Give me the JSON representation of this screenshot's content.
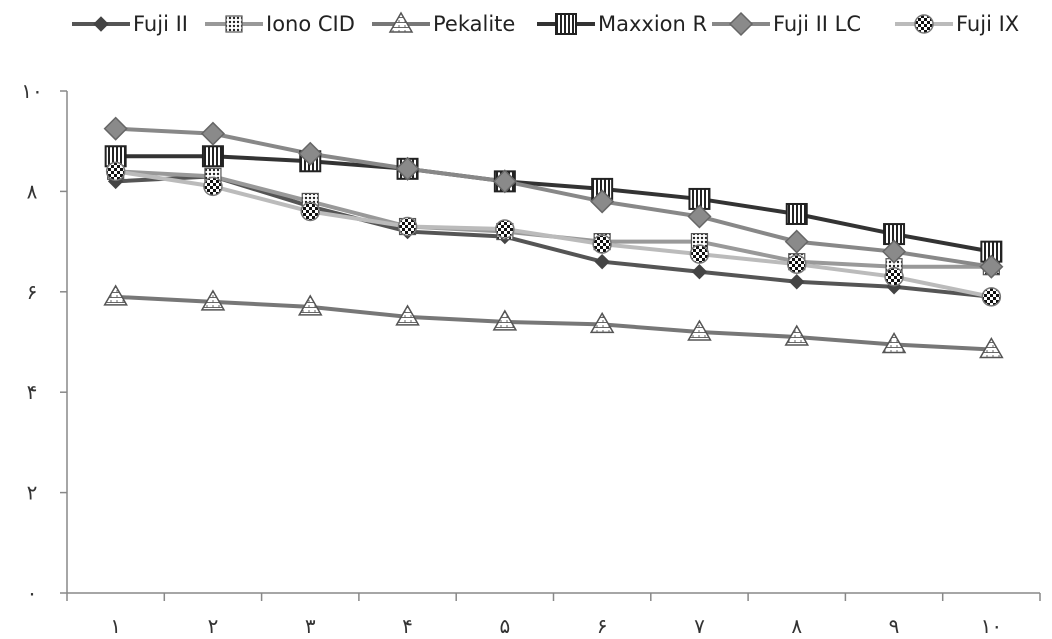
{
  "chart_data": {
    "type": "line",
    "title": "",
    "xlabel": "",
    "ylabel": "",
    "categories": [
      "١",
      "٢",
      "٣",
      "۴",
      "۵",
      "۶",
      "٧",
      "٨",
      "٩",
      "١٠"
    ],
    "y_ticks": [
      "٠",
      "٢",
      "۴",
      "۶",
      "٨",
      "١٠"
    ],
    "ylim": [
      0,
      10
    ],
    "grid": false,
    "legend_position": "top",
    "series": [
      {
        "name": "Fuji II",
        "color": "#555555",
        "marker": "diamond",
        "values": [
          8.2,
          8.3,
          7.7,
          7.2,
          7.1,
          6.6,
          6.4,
          6.2,
          6.1,
          5.9
        ]
      },
      {
        "name": "Iono CID",
        "color": "#999999",
        "marker": "square-dotted",
        "values": [
          8.4,
          8.3,
          7.8,
          7.3,
          7.2,
          7.0,
          7.0,
          6.6,
          6.5,
          6.5
        ]
      },
      {
        "name": "Pekalite",
        "color": "#777777",
        "marker": "triangle",
        "values": [
          5.9,
          5.8,
          5.7,
          5.5,
          5.4,
          5.35,
          5.2,
          5.1,
          4.95,
          4.85
        ]
      },
      {
        "name": "Maxxion R",
        "color": "#333333",
        "marker": "square-striped",
        "values": [
          8.7,
          8.7,
          8.6,
          8.45,
          8.2,
          8.05,
          7.85,
          7.55,
          7.15,
          6.8
        ]
      },
      {
        "name": "Fuji II LC",
        "color": "#888888",
        "marker": "diamond-light",
        "values": [
          9.25,
          9.15,
          8.75,
          8.45,
          8.2,
          7.8,
          7.5,
          7.0,
          6.8,
          6.5
        ]
      },
      {
        "name": "Fuji IX",
        "color": "#bbbbbb",
        "marker": "circle-checker",
        "values": [
          8.4,
          8.1,
          7.6,
          7.3,
          7.25,
          6.95,
          6.75,
          6.55,
          6.3,
          5.9
        ]
      }
    ]
  }
}
